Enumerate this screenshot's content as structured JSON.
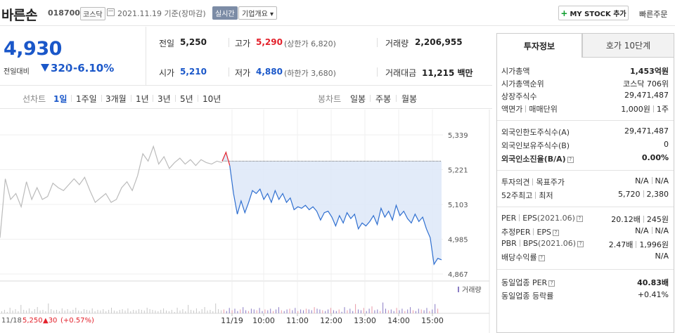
{
  "header": {
    "stock_name": "바른손",
    "stock_code": "018700",
    "market": "코스닥",
    "date_text": "2021.11.19 기준(장마감)",
    "realtime_label": "실시간",
    "company_overview_label": "기업개요 ▾",
    "mystock_label": "MY STOCK 추가",
    "mystock_plus": "+",
    "quick_order_label": "빠른주문"
  },
  "price": {
    "current": "4,930",
    "change_label": "전일대비",
    "change_value": "320",
    "change_rate": "-6.10%",
    "prev_close_label": "전일",
    "prev_close": "5,250",
    "high_label": "고가",
    "high": "5,290",
    "upper_limit": "(상한가 6,820)",
    "volume_label": "거래량",
    "volume": "2,206,955",
    "open_label": "시가",
    "open": "5,210",
    "low_label": "저가",
    "low": "4,880",
    "lower_limit": "(하한가 3,680)",
    "amount_label": "거래대금",
    "amount": "11,215 백만"
  },
  "tabs": {
    "line_label": "선차트",
    "line_items": [
      "1일",
      "1주일",
      "3개월",
      "1년",
      "3년",
      "5년",
      "10년"
    ],
    "candle_label": "봉차트",
    "candle_items": [
      "일봉",
      "주봉",
      "월봉"
    ]
  },
  "chart_data": {
    "type": "line",
    "y_ticks": [
      "5,339",
      "5,221",
      "5,103",
      "4,985",
      "4,867"
    ],
    "ylim": [
      4867,
      5339
    ],
    "x_ticks": [
      "11/19",
      "10:00",
      "11:00",
      "12:00",
      "13:00",
      "14:00",
      "15:00"
    ],
    "volume_legend": "거래량",
    "prev_day_label": "11/18",
    "prev_day_price": "5,250",
    "prev_day_change": "▲30",
    "prev_day_rate": "(+0.57%)",
    "prev_day_series_color": "#bbbbbb",
    "today_series_color": "#2f6fd0",
    "reference_price": 5250,
    "today_series": [
      5250,
      5280,
      5235,
      5140,
      5070,
      5115,
      5075,
      5110,
      5150,
      5140,
      5155,
      5120,
      5140,
      5110,
      5150,
      5120,
      5140,
      5110,
      5125,
      5085,
      5095,
      5090,
      5100,
      5085,
      5095,
      5080,
      5050,
      5075,
      5080,
      5060,
      5030,
      5065,
      5040,
      5075,
      5055,
      5070,
      5020,
      5040,
      5030,
      5045,
      5065,
      5035,
      5090,
      5060,
      5080,
      5050,
      5100,
      5065,
      5080,
      5055,
      5040,
      5070,
      5045,
      5060,
      5020,
      4990,
      4900,
      4920,
      4915
    ],
    "prev_series": [
      4990,
      5190,
      5120,
      5140,
      5095,
      5180,
      5120,
      5160,
      5120,
      5130,
      5175,
      5160,
      5150,
      5170,
      5190,
      5170,
      5195,
      5150,
      5110,
      5125,
      5140,
      5110,
      5120,
      5160,
      5180,
      5150,
      5200,
      5275,
      5250,
      5300,
      5240,
      5265,
      5225,
      5245,
      5260,
      5240,
      5255,
      5235,
      5255,
      5245,
      5240,
      5250,
      5245
    ]
  },
  "invest": {
    "tab_on": "투자정보",
    "tab_off": "호가 10단계",
    "rows": {
      "market_cap_k": "시가총액",
      "market_cap_v": "1,453억원",
      "rank_k": "시가총액순위",
      "rank_v": "코스닥 706위",
      "shares_k": "상장주식수",
      "shares_v": "29,471,487",
      "par_k": "액면가",
      "par_k2": "매매단위",
      "par_v": "1,000원",
      "par_v2": "1주",
      "foreign_limit_k": "외국인한도주식수(A)",
      "foreign_limit_v": "29,471,487",
      "foreign_hold_k": "외국인보유주식수(B)",
      "foreign_hold_v": "0",
      "foreign_rate_k": "외국인소진율(B/A)",
      "foreign_rate_v": "0.00%",
      "opinion_k": "투자의견",
      "opinion_k2": "목표주가",
      "opinion_v": "N/A",
      "opinion_v2": "N/A",
      "week52_k": "52주최고",
      "week52_k2": "최저",
      "week52_v": "5,720",
      "week52_v2": "2,380",
      "per_k": "PER",
      "per_k2": "EPS",
      "per_date": "(2021.06)",
      "per_v": "20.12배",
      "per_v2": "245원",
      "eper_k": "추정PER",
      "eper_k2": "EPS",
      "eper_v": "N/A",
      "eper_v2": "N/A",
      "pbr_k": "PBR",
      "pbr_k2": "BPS",
      "pbr_date": "(2021.06)",
      "pbr_v": "2.47배",
      "pbr_v2": "1,996원",
      "div_k": "배당수익률",
      "div_v": "N/A",
      "ind_per_k": "동일업종 PER",
      "ind_per_v": "40.83배",
      "ind_rate_k": "동일업종 등락률",
      "ind_rate_v": "+0.41%"
    }
  }
}
